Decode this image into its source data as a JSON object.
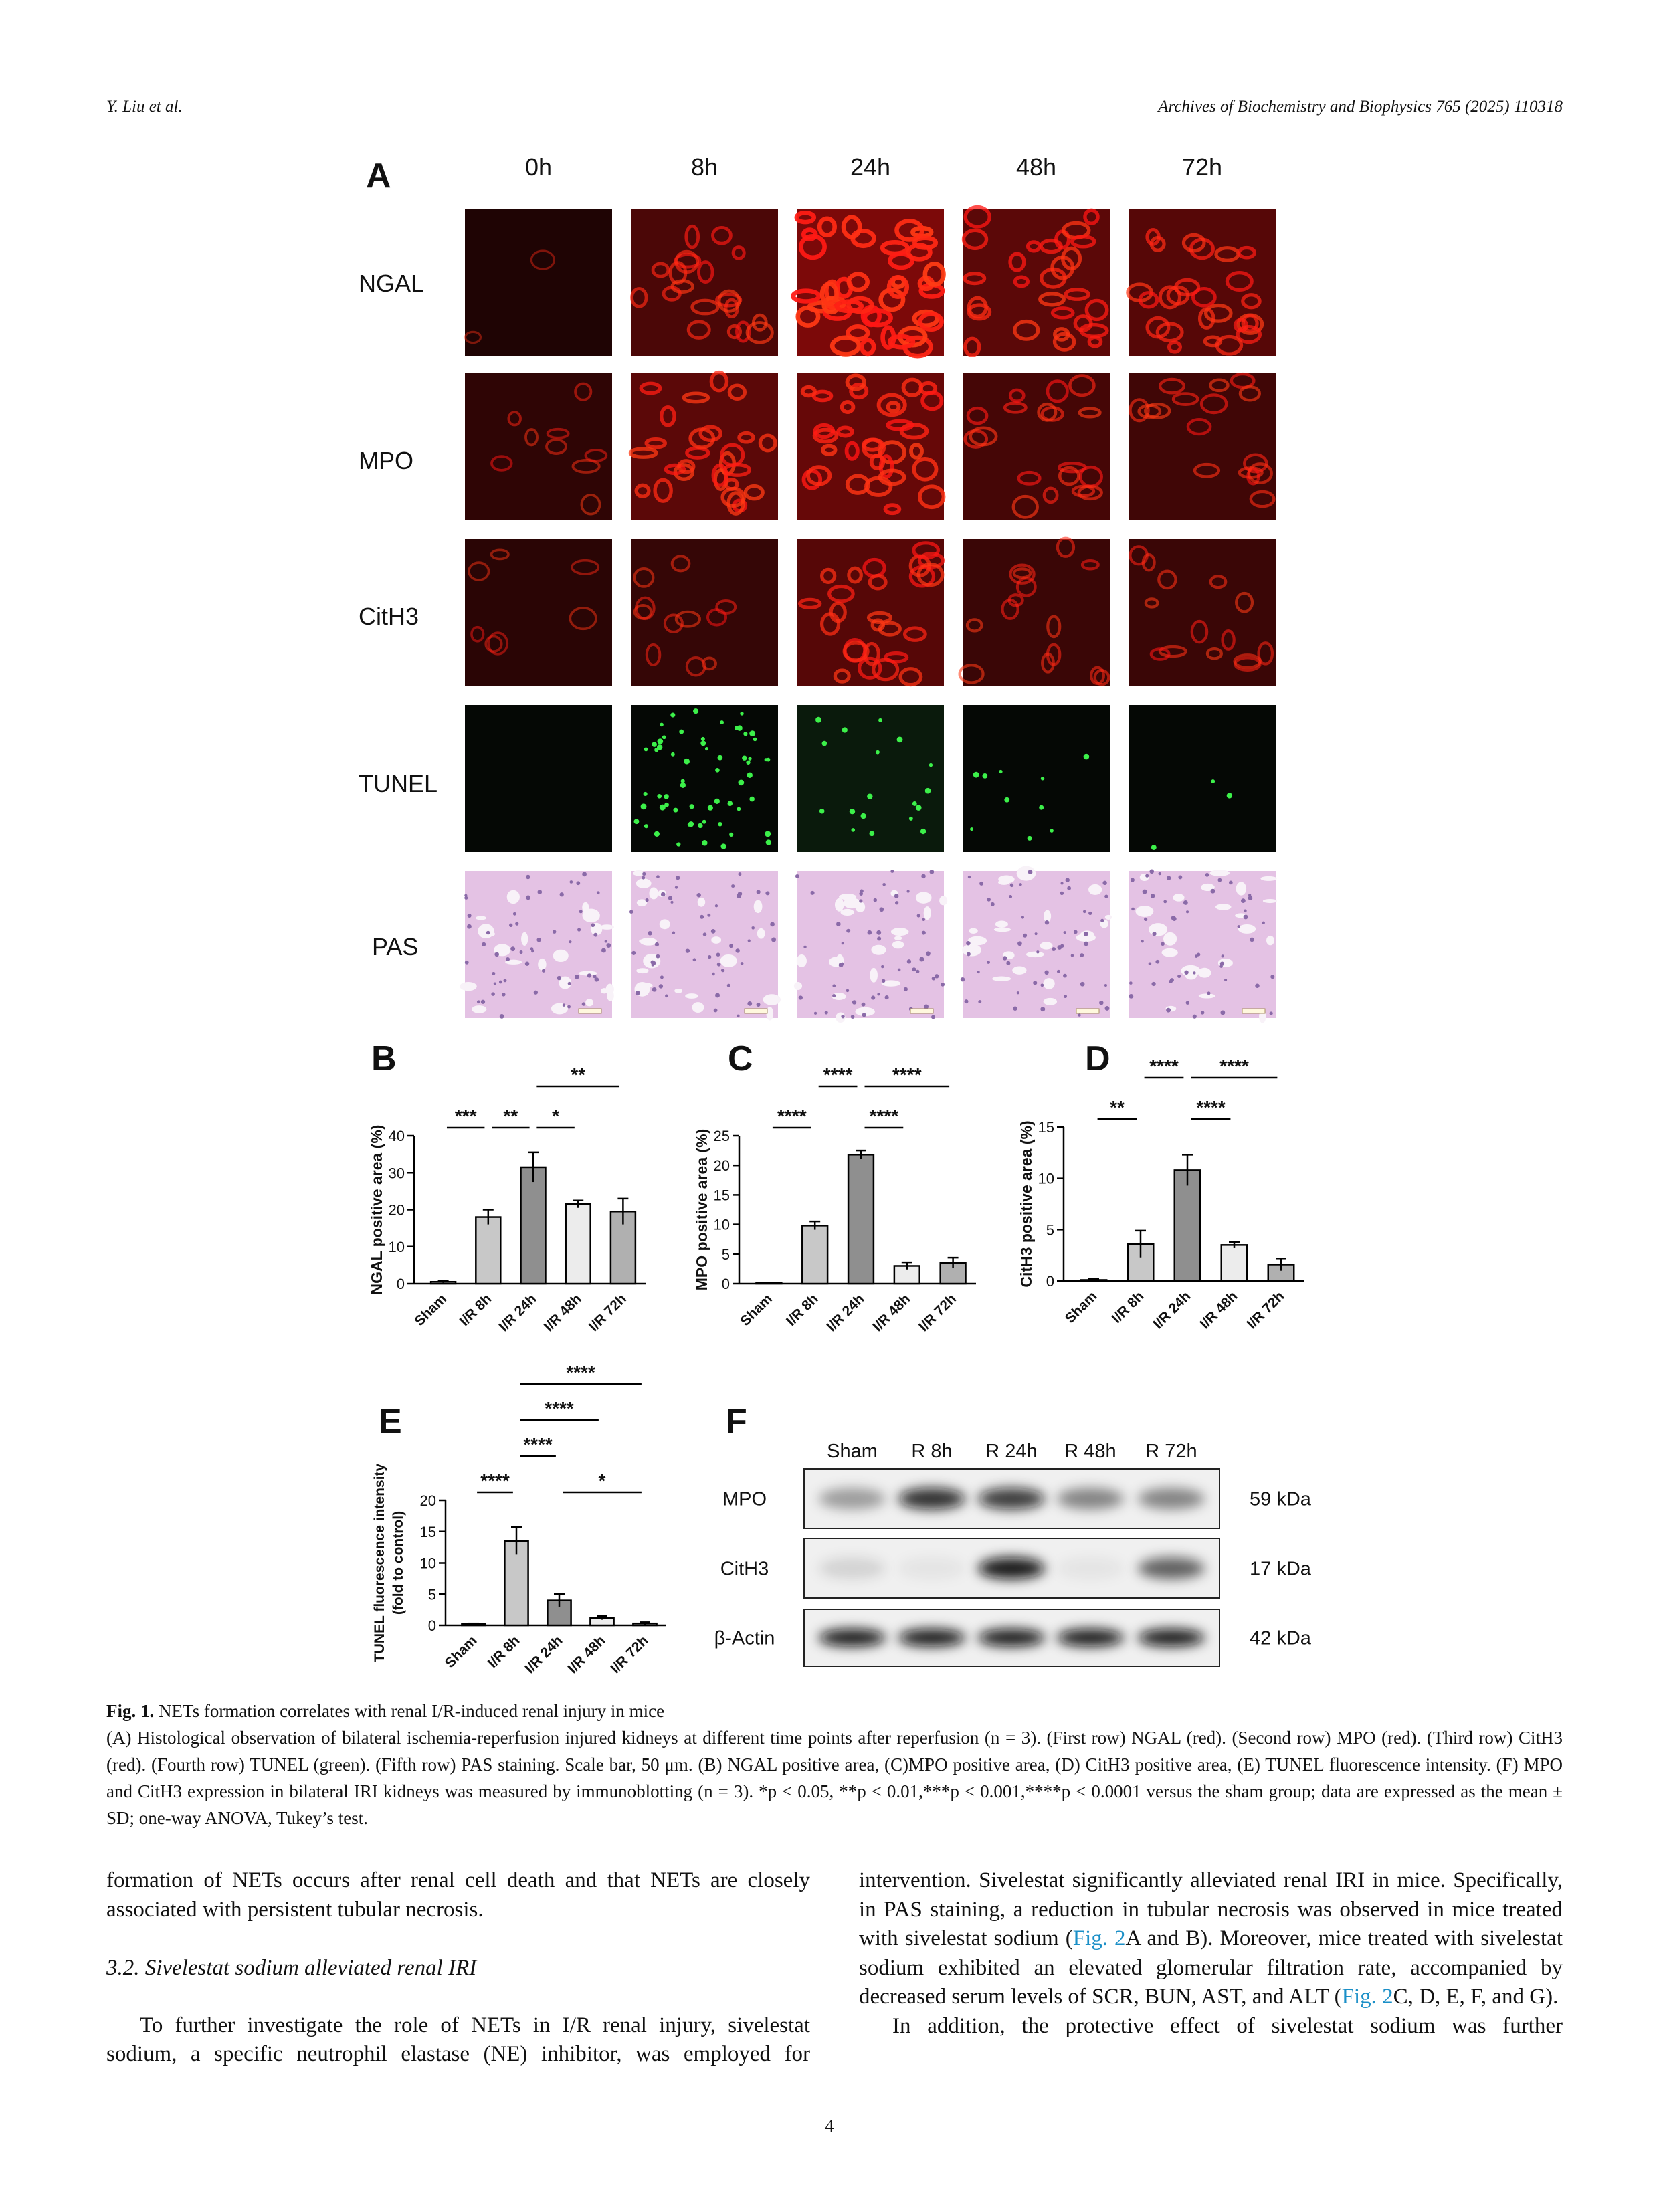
{
  "header": {
    "authors": "Y. Liu et al.",
    "journal": "Archives of Biochemistry and Biophysics 765 (2025) 110318"
  },
  "panel_a": {
    "label": "A",
    "columns": [
      "0h",
      "8h",
      "24h",
      "48h",
      "72h"
    ],
    "rows": [
      "NGAL",
      "MPO",
      "CitH3",
      "TUNEL",
      "PAS"
    ]
  },
  "chart_data": [
    {
      "type": "bar",
      "panel": "B",
      "ylabel": "NGAL positive area (%)",
      "categories": [
        "Sham",
        "I/R 8h",
        "I/R 24h",
        "I/R 48h",
        "I/R 72h"
      ],
      "values": [
        0.5,
        18,
        31.5,
        21.5,
        19.5
      ],
      "errors": [
        0.3,
        2,
        4,
        1,
        3.5
      ],
      "colors": [
        "#ffffff",
        "#c8c8c8",
        "#8f8f8f",
        "#ececec",
        "#b0b0b0"
      ],
      "ylim": [
        0,
        40
      ],
      "yticks": [
        0,
        10,
        20,
        30,
        40
      ],
      "significance": [
        [
          {
            "label": "***",
            "from": "Sham",
            "to": "I/R 8h"
          },
          {
            "label": "**",
            "from": "I/R 8h",
            "to": "I/R 24h"
          },
          {
            "label": "*",
            "from": "I/R 24h",
            "to": "I/R 48h"
          }
        ],
        [
          {
            "label": "**",
            "from": "I/R 24h",
            "to": "I/R 72h"
          }
        ]
      ]
    },
    {
      "type": "bar",
      "panel": "C",
      "ylabel": "MPO positive area (%)",
      "categories": [
        "Sham",
        "I/R 8h",
        "I/R 24h",
        "I/R 48h",
        "I/R 72h"
      ],
      "values": [
        0.1,
        9.8,
        21.8,
        3,
        3.5
      ],
      "errors": [
        0.1,
        0.7,
        0.7,
        0.6,
        0.9
      ],
      "colors": [
        "#ffffff",
        "#c8c8c8",
        "#8f8f8f",
        "#ececec",
        "#b0b0b0"
      ],
      "ylim": [
        0,
        25
      ],
      "yticks": [
        0,
        5,
        10,
        15,
        20,
        25
      ],
      "significance": [
        [
          {
            "label": "****",
            "from": "Sham",
            "to": "I/R 8h"
          },
          {
            "label": "****",
            "from": "I/R 24h",
            "to": "I/R 48h"
          }
        ],
        [
          {
            "label": "****",
            "from": "I/R 8h",
            "to": "I/R 24h"
          },
          {
            "label": "****",
            "from": "I/R 24h",
            "to": "I/R 72h"
          }
        ]
      ]
    },
    {
      "type": "bar",
      "panel": "D",
      "ylabel": "CitH3 positive area (%)",
      "categories": [
        "Sham",
        "I/R 8h",
        "I/R 24h",
        "I/R 48h",
        "I/R 72h"
      ],
      "values": [
        0.1,
        3.6,
        10.8,
        3.5,
        1.6
      ],
      "errors": [
        0.1,
        1.3,
        1.5,
        0.3,
        0.6
      ],
      "colors": [
        "#ffffff",
        "#c8c8c8",
        "#8f8f8f",
        "#ececec",
        "#b0b0b0"
      ],
      "ylim": [
        0,
        15
      ],
      "yticks": [
        0,
        5,
        10,
        15
      ],
      "significance": [
        [
          {
            "label": "**",
            "from": "Sham",
            "to": "I/R 8h"
          },
          {
            "label": "****",
            "from": "I/R 24h",
            "to": "I/R 48h"
          }
        ],
        [
          {
            "label": "****",
            "from": "I/R 8h",
            "to": "I/R 24h"
          },
          {
            "label": "****",
            "from": "I/R 24h",
            "to": "I/R 72h"
          }
        ]
      ]
    },
    {
      "type": "bar",
      "panel": "E",
      "ylabel": [
        "TUNEL fluorescence intensity",
        "(fold to control)"
      ],
      "categories": [
        "Sham",
        "I/R 8h",
        "I/R 24h",
        "I/R 48h",
        "I/R 72h"
      ],
      "values": [
        0.2,
        13.5,
        4,
        1.2,
        0.3
      ],
      "errors": [
        0.1,
        2.2,
        1,
        0.3,
        0.2
      ],
      "colors": [
        "#ffffff",
        "#c8c8c8",
        "#8f8f8f",
        "#ececec",
        "#b0b0b0"
      ],
      "ylim": [
        0,
        20
      ],
      "yticks": [
        0,
        5,
        10,
        15,
        20
      ],
      "significance": [
        [
          {
            "label": "****",
            "from": "Sham",
            "to": "I/R 8h"
          },
          {
            "label": "*",
            "from": "I/R 24h",
            "to": "I/R 72h"
          }
        ],
        [
          {
            "label": "****",
            "from": "I/R 8h",
            "to": "I/R 24h"
          }
        ],
        [
          {
            "label": "****",
            "from": "I/R 8h",
            "to": "I/R 48h"
          }
        ],
        [
          {
            "label": "****",
            "from": "I/R 8h",
            "to": "I/R 72h"
          }
        ]
      ]
    }
  ],
  "panel_f": {
    "label": "F",
    "lanes": [
      "Sham",
      "R 8h",
      "R 24h",
      "R 48h",
      "R 72h"
    ],
    "rows": [
      {
        "protein": "MPO",
        "size": "59 kDa"
      },
      {
        "protein": "CitH3",
        "size": "17 kDa"
      },
      {
        "protein": "β-Actin",
        "size": "42 kDa"
      }
    ]
  },
  "caption": {
    "label": "Fig. 1.",
    "title": "NETs formation correlates with renal I/R-induced renal injury in mice",
    "text": "(A) Histological observation of bilateral ischemia-reperfusion injured kidneys at different time points after reperfusion (n = 3). (First row) NGAL (red). (Second row) MPO (red). (Third row) CitH3 (red). (Fourth row) TUNEL (green). (Fifth row) PAS staining. Scale bar, 50 μm. (B) NGAL positive area, (C)MPO positive area, (D) CitH3 positive area, (E) TUNEL fluorescence intensity. (F) MPO and CitH3 expression in bilateral IRI kidneys was measured by immunoblotting (n = 3). *p < 0.05, **p < 0.01,***p < 0.001,****p < 0.0001 versus the sham group; data are expressed as the mean ± SD; one-way ANOVA, Tukey’s test."
  },
  "body": {
    "left": {
      "paragraph_1": "formation of NETs occurs after renal cell death and that NETs are closely associated with persistent tubular necrosis.",
      "heading": "3.2.  Sivelestat sodium alleviated renal IRI",
      "paragraph_2": "To further investigate the role of NETs in I/R renal injury, sivelestat sodium, a specific neutrophil elastase (NE) inhibitor, was employed for"
    },
    "right": {
      "paragraph_1": [
        "intervention. Sivelestat significantly alleviated renal IRI in mice. Specifically, in PAS staining, a reduction in tubular necrosis was observed in mice treated with sivelestat sodium (",
        "Fig. 2",
        "A and B). Moreover, mice treated with sivelestat sodium exhibited an elevated glomerular filtration rate, accompanied by decreased serum levels of SCR, BUN, AST, and ALT (",
        "Fig. 2",
        "C, D, E, F, and G)."
      ],
      "paragraph_2": "In addition, the protective effect of sivelestat sodium was further"
    }
  },
  "page_number": "4"
}
